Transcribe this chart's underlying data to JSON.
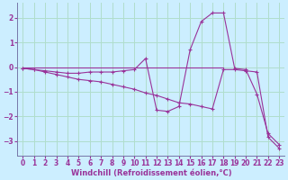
{
  "xlabel": "Windchill (Refroidissement éolien,°C)",
  "background_color": "#cceeff",
  "grid_color": "#b0ddcc",
  "line_color": "#993399",
  "spine_color": "#7777aa",
  "xlim": [
    -0.5,
    23.5
  ],
  "ylim": [
    -3.6,
    2.6
  ],
  "yticks": [
    -3,
    -2,
    -1,
    0,
    1,
    2
  ],
  "xticks": [
    0,
    1,
    2,
    3,
    4,
    5,
    6,
    7,
    8,
    9,
    10,
    11,
    12,
    13,
    14,
    15,
    16,
    17,
    18,
    19,
    20,
    21,
    22,
    23
  ],
  "hline_x": [
    0,
    18
  ],
  "hline_y": [
    0.0,
    0.0
  ],
  "line1_x": [
    0,
    1,
    2,
    3,
    4,
    5,
    6,
    7,
    8,
    9,
    10,
    11,
    12,
    13,
    14,
    15,
    16,
    17,
    18,
    19,
    20,
    21,
    22,
    23
  ],
  "line1_y": [
    -0.05,
    -0.1,
    -0.15,
    -0.2,
    -0.25,
    -0.25,
    -0.2,
    -0.2,
    -0.2,
    -0.15,
    -0.1,
    0.35,
    -1.75,
    -1.8,
    -1.6,
    0.7,
    1.85,
    2.2,
    2.2,
    -0.05,
    -0.1,
    -1.1,
    -2.7,
    -3.15
  ],
  "line2_x": [
    0,
    1,
    2,
    3,
    4,
    5,
    6,
    7,
    8,
    9,
    10,
    11,
    12,
    13,
    14,
    15,
    16,
    17,
    18,
    19,
    20,
    21,
    22,
    23
  ],
  "line2_y": [
    -0.05,
    -0.1,
    -0.2,
    -0.3,
    -0.4,
    -0.5,
    -0.55,
    -0.6,
    -0.7,
    -0.8,
    -0.9,
    -1.05,
    -1.15,
    -1.3,
    -1.45,
    -1.5,
    -1.6,
    -1.7,
    -0.1,
    -0.1,
    -0.15,
    -0.2,
    -2.85,
    -3.3
  ],
  "font_color": "#993399",
  "font_size_ticks": 5.5,
  "font_size_xlabel": 6.0
}
